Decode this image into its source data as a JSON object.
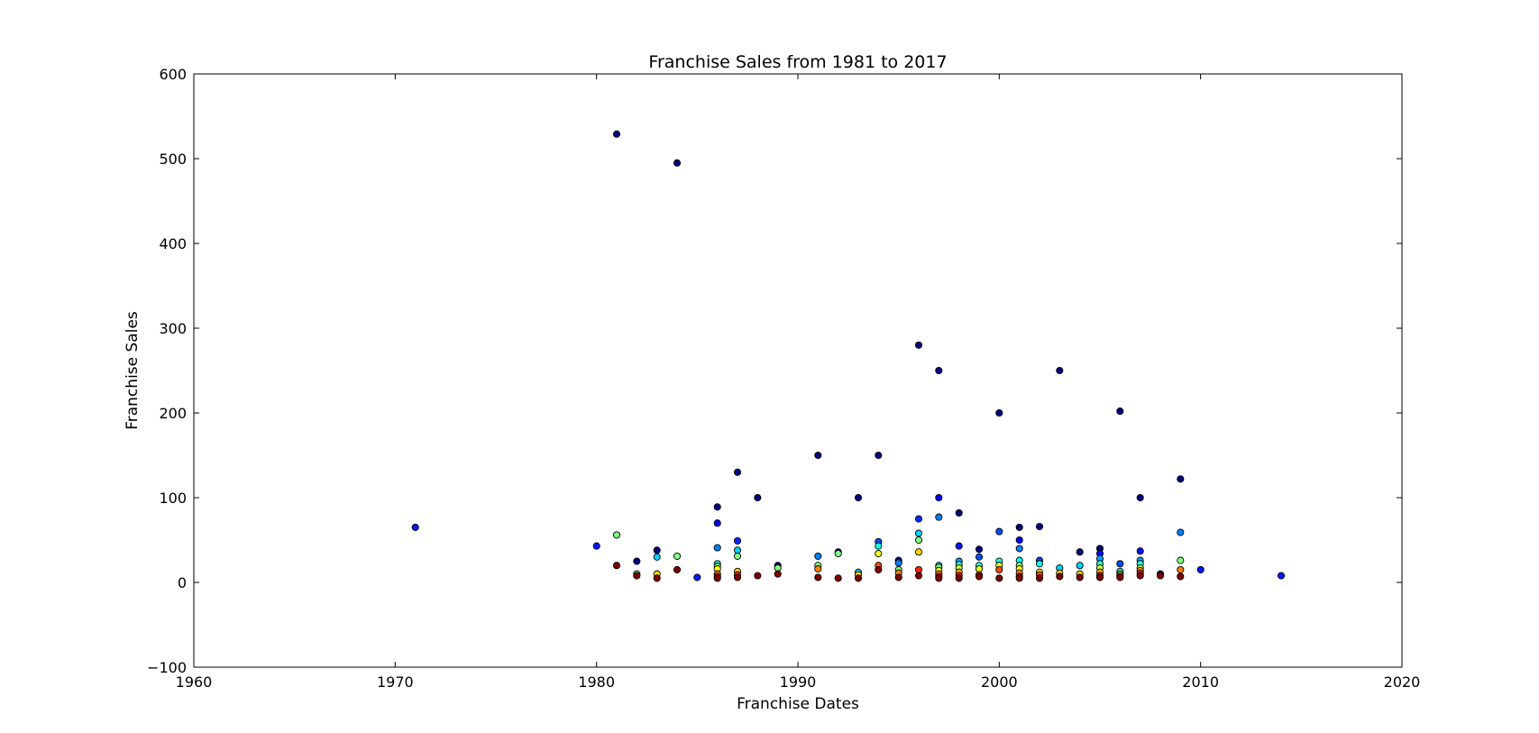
{
  "chart_data": {
    "type": "scatter",
    "title": "Franchise Sales from 1981 to 2017",
    "xlabel": "Franchise Dates",
    "ylabel": "Franchise Sales",
    "xlim": [
      1960,
      2020
    ],
    "ylim": [
      -100,
      600
    ],
    "xticks": [
      "1960",
      "1970",
      "1980",
      "1990",
      "2000",
      "2010",
      "2020"
    ],
    "yticks": [
      "−100",
      "0",
      "100",
      "200",
      "300",
      "400",
      "500",
      "600"
    ],
    "grid": false,
    "legend": "none",
    "colormap": "jet",
    "color_scale": "points colored from dark blue (largest) to red (smallest)",
    "points": [
      [
        1971,
        65
      ],
      [
        1980,
        43
      ],
      [
        1981,
        529
      ],
      [
        1981,
        56
      ],
      [
        1981,
        20
      ],
      [
        1982,
        25
      ],
      [
        1982,
        10
      ],
      [
        1982,
        8
      ],
      [
        1983,
        38
      ],
      [
        1983,
        30
      ],
      [
        1983,
        10
      ],
      [
        1983,
        5
      ],
      [
        1984,
        495
      ],
      [
        1984,
        31
      ],
      [
        1984,
        15
      ],
      [
        1985,
        6
      ],
      [
        1986,
        89
      ],
      [
        1986,
        70
      ],
      [
        1986,
        41
      ],
      [
        1986,
        22
      ],
      [
        1986,
        19
      ],
      [
        1986,
        16
      ],
      [
        1986,
        10
      ],
      [
        1986,
        7
      ],
      [
        1986,
        5
      ],
      [
        1987,
        130
      ],
      [
        1987,
        49
      ],
      [
        1987,
        38
      ],
      [
        1987,
        31
      ],
      [
        1987,
        13
      ],
      [
        1987,
        9
      ],
      [
        1987,
        6
      ],
      [
        1988,
        100
      ],
      [
        1988,
        8
      ],
      [
        1989,
        20
      ],
      [
        1989,
        17
      ],
      [
        1989,
        10
      ],
      [
        1991,
        150
      ],
      [
        1991,
        31
      ],
      [
        1991,
        20
      ],
      [
        1991,
        16
      ],
      [
        1991,
        6
      ],
      [
        1992,
        36
      ],
      [
        1992,
        34
      ],
      [
        1992,
        5
      ],
      [
        1993,
        100
      ],
      [
        1993,
        12
      ],
      [
        1993,
        9
      ],
      [
        1993,
        5
      ],
      [
        1994,
        150
      ],
      [
        1994,
        48
      ],
      [
        1994,
        43
      ],
      [
        1994,
        34
      ],
      [
        1994,
        20
      ],
      [
        1994,
        15
      ],
      [
        1995,
        26
      ],
      [
        1995,
        23
      ],
      [
        1995,
        15
      ],
      [
        1995,
        11
      ],
      [
        1995,
        6
      ],
      [
        1996,
        280
      ],
      [
        1996,
        75
      ],
      [
        1996,
        58
      ],
      [
        1996,
        50
      ],
      [
        1996,
        36
      ],
      [
        1996,
        15
      ],
      [
        1996,
        8
      ],
      [
        1997,
        250
      ],
      [
        1997,
        100
      ],
      [
        1997,
        77
      ],
      [
        1997,
        20
      ],
      [
        1997,
        18
      ],
      [
        1997,
        14
      ],
      [
        1997,
        10
      ],
      [
        1997,
        7
      ],
      [
        1997,
        5
      ],
      [
        1998,
        82
      ],
      [
        1998,
        43
      ],
      [
        1998,
        25
      ],
      [
        1998,
        21
      ],
      [
        1998,
        17
      ],
      [
        1998,
        12
      ],
      [
        1998,
        8
      ],
      [
        1998,
        5
      ],
      [
        1999,
        39
      ],
      [
        1999,
        30
      ],
      [
        1999,
        20
      ],
      [
        1999,
        16
      ],
      [
        1999,
        9
      ],
      [
        1999,
        7
      ],
      [
        2000,
        200
      ],
      [
        2000,
        60
      ],
      [
        2000,
        25
      ],
      [
        2000,
        20
      ],
      [
        2000,
        15
      ],
      [
        2000,
        5
      ],
      [
        2001,
        65
      ],
      [
        2001,
        50
      ],
      [
        2001,
        40
      ],
      [
        2001,
        26
      ],
      [
        2001,
        20
      ],
      [
        2001,
        16
      ],
      [
        2001,
        11
      ],
      [
        2001,
        7
      ],
      [
        2001,
        5
      ],
      [
        2002,
        66
      ],
      [
        2002,
        26
      ],
      [
        2002,
        22
      ],
      [
        2002,
        12
      ],
      [
        2002,
        9
      ],
      [
        2002,
        5
      ],
      [
        2003,
        250
      ],
      [
        2003,
        17
      ],
      [
        2003,
        11
      ],
      [
        2003,
        7
      ],
      [
        2004,
        36
      ],
      [
        2004,
        20
      ],
      [
        2004,
        10
      ],
      [
        2004,
        6
      ],
      [
        2005,
        40
      ],
      [
        2005,
        34
      ],
      [
        2005,
        28
      ],
      [
        2005,
        22
      ],
      [
        2005,
        17
      ],
      [
        2005,
        12
      ],
      [
        2005,
        8
      ],
      [
        2005,
        6
      ],
      [
        2006,
        202
      ],
      [
        2006,
        22
      ],
      [
        2006,
        13
      ],
      [
        2006,
        10
      ],
      [
        2006,
        8
      ],
      [
        2006,
        6
      ],
      [
        2007,
        100
      ],
      [
        2007,
        37
      ],
      [
        2007,
        26
      ],
      [
        2007,
        22
      ],
      [
        2007,
        17
      ],
      [
        2007,
        14
      ],
      [
        2007,
        11
      ],
      [
        2007,
        8
      ],
      [
        2008,
        10
      ],
      [
        2008,
        8
      ],
      [
        2009,
        122
      ],
      [
        2009,
        59
      ],
      [
        2009,
        26
      ],
      [
        2009,
        15
      ],
      [
        2009,
        7
      ],
      [
        2010,
        15
      ],
      [
        2014,
        8
      ]
    ]
  }
}
